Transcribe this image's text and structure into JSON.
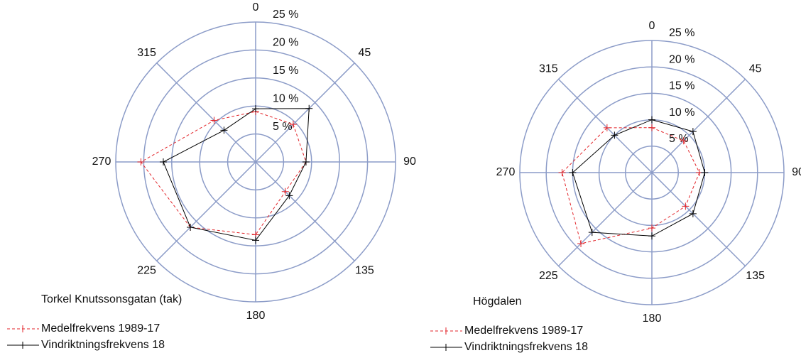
{
  "chart_data": [
    {
      "type": "radar",
      "subtitle": "Torkel Knutssonsgatan (tak)",
      "categories": [
        "0",
        "45",
        "90",
        "135",
        "180",
        "225",
        "270",
        "315"
      ],
      "rlim": [
        0,
        25
      ],
      "rticks": [
        {
          "value": 5,
          "label": "5 %"
        },
        {
          "value": 10,
          "label": "10 %"
        },
        {
          "value": 15,
          "label": "15 %"
        },
        {
          "value": 20,
          "label": "20 %"
        },
        {
          "value": 25,
          "label": "25 %"
        }
      ],
      "grid_color": "#8c9cc8",
      "series": [
        {
          "name": "Medelfrekvens 1989-17",
          "color": "#e3262b",
          "dashed": true,
          "values": [
            9,
            9.5,
            9,
            7.5,
            13,
            16.5,
            20.5,
            10.5
          ]
        },
        {
          "name": "Vindriktningsfrekvens 18",
          "color": "#000000",
          "dashed": false,
          "values": [
            9.5,
            13.5,
            9,
            8.5,
            14,
            16.5,
            16.5,
            8
          ]
        }
      ]
    },
    {
      "type": "radar",
      "subtitle": "Högdalen",
      "categories": [
        "0",
        "45",
        "90",
        "135",
        "180",
        "225",
        "270",
        "315"
      ],
      "rlim": [
        0,
        25
      ],
      "rticks": [
        {
          "value": 5,
          "label": "5 %"
        },
        {
          "value": 10,
          "label": "10 %"
        },
        {
          "value": 15,
          "label": "15 %"
        },
        {
          "value": 20,
          "label": "20 %"
        },
        {
          "value": 25,
          "label": "25 %"
        }
      ],
      "grid_color": "#8c9cc8",
      "series": [
        {
          "name": "Medelfrekvens 1989-17",
          "color": "#e3262b",
          "dashed": true,
          "values": [
            8.5,
            8.5,
            9,
            9,
            10.5,
            19,
            17,
            12
          ]
        },
        {
          "name": "Vindriktningsfrekvens 18",
          "color": "#000000",
          "dashed": false,
          "values": [
            10,
            11,
            10,
            11,
            12,
            16,
            15,
            10
          ]
        }
      ]
    }
  ]
}
